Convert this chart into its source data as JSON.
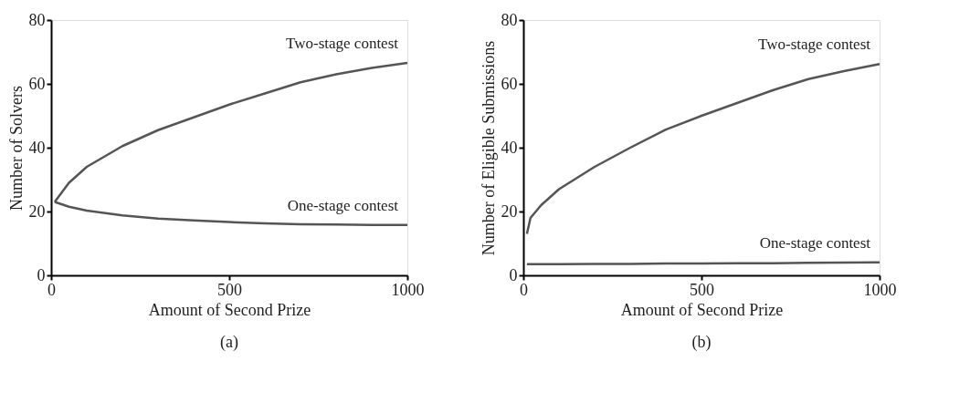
{
  "chart_data": [
    {
      "type": "line",
      "title": "(a)",
      "xlabel": "Amount of Second Prize",
      "ylabel": "Number of Solvers",
      "xlim": [
        0,
        1000
      ],
      "ylim": [
        0,
        80
      ],
      "xticks": [
        0,
        500,
        1000
      ],
      "yticks": [
        0,
        20,
        40,
        60,
        80
      ],
      "grid": false,
      "marker": "none",
      "line_style": "solid",
      "x": [
        10,
        50,
        100,
        200,
        300,
        400,
        500,
        600,
        700,
        800,
        900,
        1000
      ],
      "series": [
        {
          "name": "Two-stage contest",
          "color": "#555555",
          "values": [
            23,
            29,
            34,
            40.5,
            45.5,
            49.5,
            53.5,
            57,
            60.5,
            63,
            65,
            66.6
          ]
        },
        {
          "name": "One-stage contest",
          "color": "#555555",
          "values": [
            23,
            21.5,
            20.3,
            18.8,
            17.8,
            17.2,
            16.7,
            16.3,
            16,
            15.9,
            15.8,
            15.8
          ]
        }
      ]
    },
    {
      "type": "line",
      "title": "(b)",
      "xlabel": "Amount of Second Prize",
      "ylabel": "Number of Eligible Submissions",
      "xlim": [
        0,
        1000
      ],
      "ylim": [
        0,
        80
      ],
      "xticks": [
        0,
        500,
        1000
      ],
      "yticks": [
        0,
        20,
        40,
        60,
        80
      ],
      "grid": false,
      "marker": "none",
      "line_style": "solid",
      "x": [
        10,
        20,
        50,
        100,
        200,
        300,
        400,
        500,
        600,
        700,
        800,
        900,
        1000
      ],
      "series": [
        {
          "name": "Two-stage contest",
          "color": "#555555",
          "values": [
            13,
            18,
            22,
            27,
            34,
            40,
            45.7,
            50,
            54,
            58,
            61.5,
            64,
            66.2
          ]
        },
        {
          "name": "One-stage contest",
          "color": "#555555",
          "values": [
            3.5,
            3.5,
            3.5,
            3.5,
            3.6,
            3.6,
            3.7,
            3.7,
            3.8,
            3.8,
            3.9,
            4,
            4.1
          ]
        }
      ]
    }
  ]
}
